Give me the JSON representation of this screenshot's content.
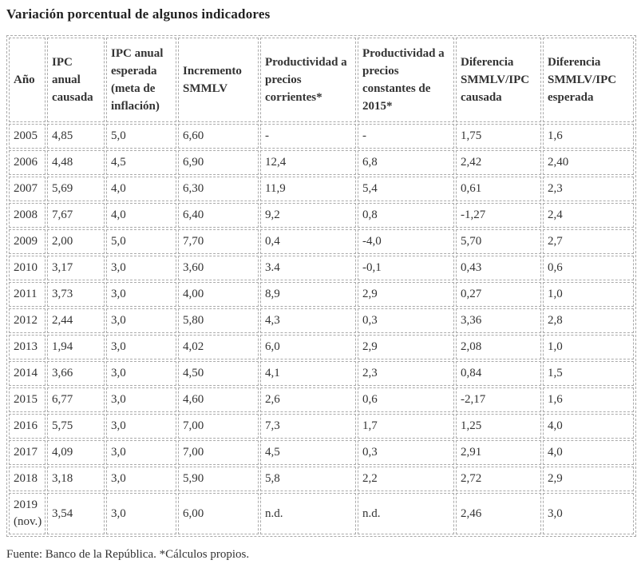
{
  "page": {
    "title": "Variación porcentual de algunos indicadores",
    "source_note": "Fuente: Banco de la República. *Cálculos propios."
  },
  "colors": {
    "background": "#ffffff",
    "text": "#333333",
    "title": "#222222",
    "border": "#aaaaaa"
  },
  "table": {
    "columns": [
      "Año",
      "IPC anual causada",
      "IPC anual esperada (meta de inflación)",
      "Incremento SMMLV",
      "Productividad a precios corrientes*",
      "Productividad a precios constantes de 2015*",
      "Diferencia SMMLV/IPC causada",
      "Diferencia SMMLV/IPC esperada"
    ],
    "rows": [
      [
        "2005",
        "4,85",
        "5,0",
        "6,60",
        "-",
        "-",
        "1,75",
        "1,6"
      ],
      [
        "2006",
        "4,48",
        "4,5",
        "6,90",
        "12,4",
        "6,8",
        "2,42",
        "2,40"
      ],
      [
        "2007",
        "5,69",
        "4,0",
        "6,30",
        "11,9",
        "5,4",
        "0,61",
        "2,3"
      ],
      [
        "2008",
        "7,67",
        "4,0",
        "6,40",
        "9,2",
        "0,8",
        "-1,27",
        "2,4"
      ],
      [
        "2009",
        "2,00",
        "5,0",
        "7,70",
        "0,4",
        "-4,0",
        "5,70",
        "2,7"
      ],
      [
        "2010",
        "3,17",
        "3,0",
        "3,60",
        "3.4",
        "-0,1",
        "0,43",
        "0,6"
      ],
      [
        "2011",
        "3,73",
        "3,0",
        "4,00",
        "8,9",
        "2,9",
        "0,27",
        "1,0"
      ],
      [
        "2012",
        "2,44",
        "3,0",
        "5,80",
        "4,3",
        "0,3",
        "3,36",
        "2,8"
      ],
      [
        "2013",
        "1,94",
        "3,0",
        "4,02",
        "6,0",
        "2,9",
        "2,08",
        "1,0"
      ],
      [
        "2014",
        "3,66",
        "3,0",
        "4,50",
        "4,1",
        "2,3",
        "0,84",
        "1,5"
      ],
      [
        "2015",
        "6,77",
        "3,0",
        "4,60",
        "2,6",
        "0,6",
        "-2,17",
        "1,6"
      ],
      [
        "2016",
        "5,75",
        "3,0",
        "7,00",
        "7,3",
        "1,7",
        "1,25",
        "4,0"
      ],
      [
        "2017",
        "4,09",
        "3,0",
        "7,00",
        "4,5",
        "0,3",
        "2,91",
        "4,0"
      ],
      [
        "2018",
        "3,18",
        "3,0",
        "5,90",
        "5,8",
        "2,2",
        "2,72",
        "2,9"
      ],
      [
        "2019 (nov.)",
        "3,54",
        "3,0",
        "6,00",
        "n.d.",
        "n.d.",
        "2,46",
        "3,0"
      ]
    ]
  }
}
